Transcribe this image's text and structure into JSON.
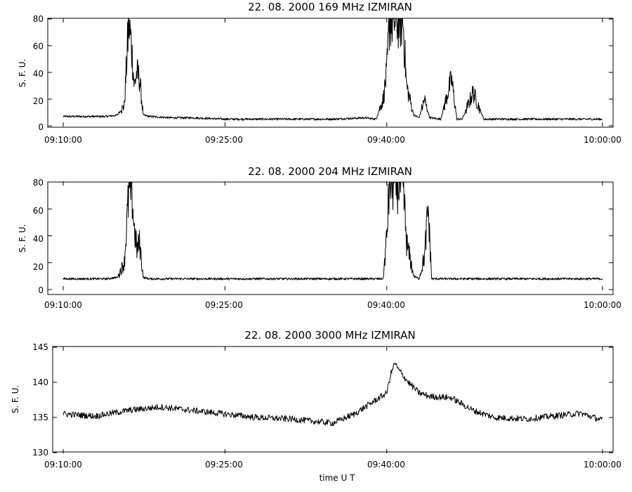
{
  "chart_data": [
    {
      "type": "line",
      "title": "22. 08.  2000   169 MHz    IZMIRAN",
      "ylabel": "S. F. U.",
      "xlabel": "",
      "xlim": [
        "09:10:00",
        "10:00:00"
      ],
      "ylim": [
        0,
        80
      ],
      "x_ticks": [
        "09:10:00",
        "09:25:00",
        "09:40:00",
        "10:00:00"
      ],
      "y_ticks": [
        "0",
        "20",
        "40",
        "60",
        "80"
      ],
      "series": [
        {
          "x": [
            "09:10:00",
            "09:12:00",
            "09:14:00",
            "09:15:00",
            "09:15:40",
            "09:16:05",
            "09:16:20",
            "09:16:35",
            "09:16:50",
            "09:17:05",
            "09:17:25",
            "09:18:00",
            "09:20:00",
            "09:22:00",
            "09:25:00",
            "09:30:00",
            "09:35:00",
            "09:38:00",
            "09:39:00",
            "09:39:40",
            "09:40:00",
            "09:40:15",
            "09:40:30",
            "09:40:45",
            "09:41:00",
            "09:41:30",
            "09:41:50",
            "09:42:30",
            "09:43:00",
            "09:43:30",
            "09:43:45",
            "09:44:00",
            "09:45:00",
            "09:46:00",
            "09:46:30",
            "09:47:00",
            "09:48:00",
            "09:49:00",
            "09:50:00",
            "09:55:00",
            "10:00:00"
          ],
          "y": [
            7,
            7,
            7,
            8,
            15,
            78,
            60,
            30,
            40,
            35,
            8,
            7,
            6,
            6,
            5,
            5,
            5,
            6,
            5,
            20,
            40,
            80,
            80,
            80,
            80,
            80,
            30,
            8,
            6,
            20,
            12,
            6,
            5,
            35,
            5,
            5,
            25,
            5,
            5,
            5,
            5
          ]
        }
      ]
    },
    {
      "type": "line",
      "title": "22. 08.  2000   204 MHz    IZMIRAN",
      "ylabel": "S. F. U.",
      "xlabel": "",
      "xlim": [
        "09:10:00",
        "10:00:00"
      ],
      "ylim": [
        0,
        80
      ],
      "x_ticks": [
        "09:10:00",
        "09:25:00",
        "09:40:00",
        "10:00:00"
      ],
      "y_ticks": [
        "0",
        "20",
        "40",
        "60",
        "80"
      ],
      "series": [
        {
          "x": [
            "09:10:00",
            "09:12:00",
            "09:14:00",
            "09:15:00",
            "09:15:40",
            "09:16:05",
            "09:16:20",
            "09:16:35",
            "09:16:50",
            "09:17:05",
            "09:17:25",
            "09:18:00",
            "09:20:00",
            "09:25:00",
            "09:30:00",
            "09:35:00",
            "09:38:00",
            "09:39:40",
            "09:40:00",
            "09:40:15",
            "09:40:30",
            "09:40:45",
            "09:41:00",
            "09:41:30",
            "09:41:50",
            "09:42:30",
            "09:43:00",
            "09:43:30",
            "09:43:50",
            "09:44:10",
            "09:45:00",
            "09:50:00",
            "09:55:00",
            "10:00:00"
          ],
          "y": [
            8,
            8,
            8,
            9,
            20,
            72,
            78,
            45,
            30,
            35,
            9,
            8,
            8,
            8,
            8,
            8,
            8,
            8,
            40,
            80,
            80,
            80,
            80,
            80,
            35,
            10,
            8,
            25,
            60,
            8,
            8,
            8,
            8,
            8
          ]
        }
      ]
    },
    {
      "type": "line",
      "title": "22. 08.  2000   3000 MHz    IZMIRAN",
      "ylabel": "S. F. U.",
      "xlabel": "time   U T",
      "xlim": [
        "09:10:00",
        "10:00:00"
      ],
      "ylim": [
        130,
        145
      ],
      "x_ticks": [
        "09:10:00",
        "09:25:00",
        "09:40:00",
        "10:00:00"
      ],
      "y_ticks": [
        "130",
        "135",
        "140",
        "145"
      ],
      "series": [
        {
          "x": [
            "09:10:00",
            "09:13:00",
            "09:16:00",
            "09:19:00",
            "09:22:00",
            "09:25:00",
            "09:28:00",
            "09:31:00",
            "09:33:00",
            "09:35:00",
            "09:37:00",
            "09:38:00",
            "09:39:00",
            "09:40:00",
            "09:40:20",
            "09:40:45",
            "09:41:00",
            "09:42:00",
            "09:43:00",
            "09:44:00",
            "09:46:00",
            "09:48:00",
            "09:50:00",
            "09:53:00",
            "09:56:00",
            "09:58:00",
            "10:00:00"
          ],
          "y": [
            135.5,
            135.2,
            136,
            136.5,
            136,
            135.5,
            135,
            134.8,
            134.5,
            134.2,
            135.5,
            136.5,
            137.5,
            138.5,
            141,
            142.8,
            142,
            140,
            138.5,
            138,
            137.8,
            136,
            135,
            134.8,
            135.3,
            135.6,
            134.6
          ]
        }
      ]
    }
  ]
}
